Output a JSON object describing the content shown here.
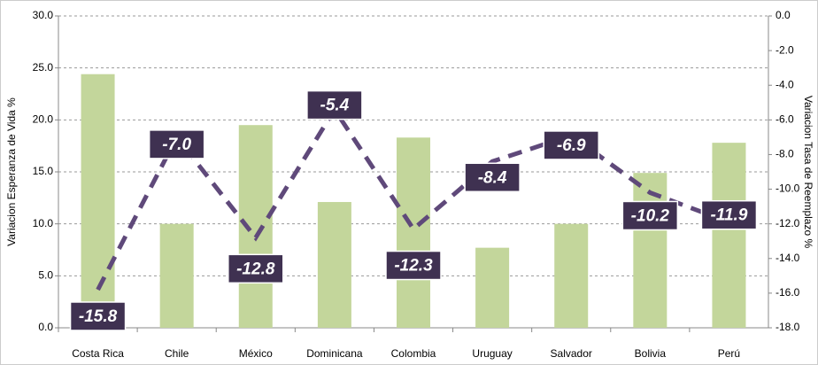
{
  "chart_data": {
    "type": "bar_line",
    "categories": [
      "Costa Rica",
      "Chile",
      "México",
      "Dominicana",
      "Colombia",
      "Uruguay",
      "Salvador",
      "Bolivia",
      "Perú"
    ],
    "series": [
      {
        "name": "Variacion Esperanza de Vida %",
        "color": "#c3d69b",
        "type": "bar",
        "axis": "y",
        "values": [
          24.4,
          10.0,
          19.5,
          12.1,
          18.3,
          7.7,
          10.0,
          14.9,
          17.8
        ]
      },
      {
        "name": "Variacion Tasa de Reemplazo %",
        "color": "#5f497a",
        "type": "line",
        "axis": "y2",
        "values": [
          -15.8,
          -7.0,
          -12.8,
          -5.4,
          -12.3,
          -8.4,
          -6.9,
          -10.2,
          -11.9
        ],
        "value_labels": [
          "-15.8",
          "-7.0",
          "-12.8",
          "-5.4",
          "-12.3",
          "-8.4",
          "-6.9",
          "-10.2",
          "-11.9"
        ]
      }
    ],
    "y_label": "Variacion Esperanza de Vida %",
    "y2_label": "Variacion Tasa de Reemplazo %",
    "ylim": [
      0,
      30
    ],
    "yticks": [
      {
        "value": 0,
        "label": "0.0"
      },
      {
        "value": 5,
        "label": "5.0"
      },
      {
        "value": 10,
        "label": "10.0"
      },
      {
        "value": 15,
        "label": "15.0"
      },
      {
        "value": 20,
        "label": "20.0"
      },
      {
        "value": 25,
        "label": "25.0"
      },
      {
        "value": 30,
        "label": "30.0"
      }
    ],
    "y2lim": [
      -18,
      0
    ],
    "y2ticks": [
      {
        "value": 0,
        "label": "0.0"
      },
      {
        "value": -2,
        "label": "-2.0"
      },
      {
        "value": -4,
        "label": "-4.0"
      },
      {
        "value": -6,
        "label": "-6.0"
      },
      {
        "value": -8,
        "label": "-8.0"
      },
      {
        "value": -10,
        "label": "-10.0"
      },
      {
        "value": -12,
        "label": "-12.0"
      },
      {
        "value": -14,
        "label": "-14.0"
      },
      {
        "value": -16,
        "label": "-16.0"
      },
      {
        "value": -18,
        "label": "-18.0"
      }
    ],
    "grid": true
  }
}
